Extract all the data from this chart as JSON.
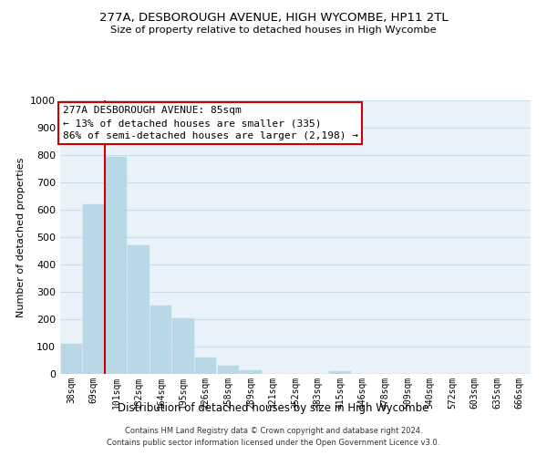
{
  "title_line1": "277A, DESBOROUGH AVENUE, HIGH WYCOMBE, HP11 2TL",
  "title_line2": "Size of property relative to detached houses in High Wycombe",
  "xlabel": "Distribution of detached houses by size in High Wycombe",
  "ylabel": "Number of detached properties",
  "bar_labels": [
    "38sqm",
    "69sqm",
    "101sqm",
    "132sqm",
    "164sqm",
    "195sqm",
    "226sqm",
    "258sqm",
    "289sqm",
    "321sqm",
    "352sqm",
    "383sqm",
    "415sqm",
    "446sqm",
    "478sqm",
    "509sqm",
    "540sqm",
    "572sqm",
    "603sqm",
    "635sqm",
    "666sqm"
  ],
  "bar_values": [
    110,
    620,
    795,
    470,
    250,
    205,
    60,
    30,
    15,
    0,
    0,
    0,
    10,
    0,
    0,
    0,
    0,
    0,
    0,
    0,
    0
  ],
  "bar_color": "#b8d8e8",
  "red_line_color": "#cc0000",
  "red_line_x": 1.5,
  "ylim": [
    0,
    1000
  ],
  "yticks": [
    0,
    100,
    200,
    300,
    400,
    500,
    600,
    700,
    800,
    900,
    1000
  ],
  "annotation_box_text_line1": "277A DESBOROUGH AVENUE: 85sqm",
  "annotation_box_text_line2": "← 13% of detached houses are smaller (335)",
  "annotation_box_text_line3": "86% of semi-detached houses are larger (2,198) →",
  "footer_line1": "Contains HM Land Registry data © Crown copyright and database right 2024.",
  "footer_line2": "Contains public sector information licensed under the Open Government Licence v3.0.",
  "background_color": "#ffffff",
  "grid_color": "#c8dce8",
  "plot_bg_color": "#e8f2f8"
}
